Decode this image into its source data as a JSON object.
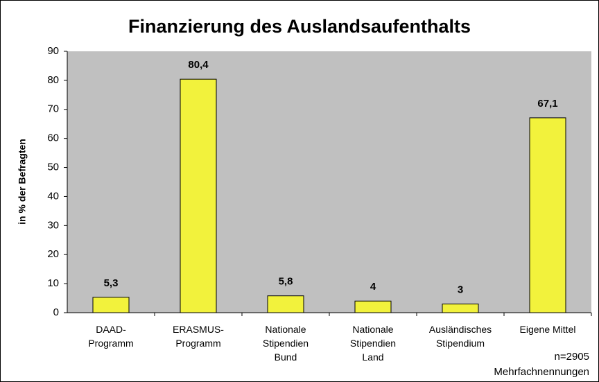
{
  "chart_data": {
    "type": "bar",
    "title": "Finanzierung des Auslandsaufenthalts",
    "ylabel": "in % der Befragten",
    "categories": [
      "DAAD-\nProgramm",
      "ERASMUS-\nProgramm",
      "Nationale\nStipendien\nBund",
      "Nationale\nStipendien\nLand",
      "Ausländisches\nStipendium",
      "Eigene Mittel"
    ],
    "values": [
      5.3,
      80.4,
      5.8,
      4,
      3,
      67.1
    ],
    "value_labels": [
      "5,3",
      "80,4",
      "5,8",
      "4",
      "3",
      "67,1"
    ],
    "color": "#f2f23c",
    "background": "#c0c0c0",
    "ylim": [
      0,
      90
    ],
    "yticks": [
      0,
      10,
      20,
      30,
      40,
      50,
      60,
      70,
      80,
      90
    ],
    "annotations": [
      "n=2905",
      "Mehrfachnennungen"
    ]
  }
}
